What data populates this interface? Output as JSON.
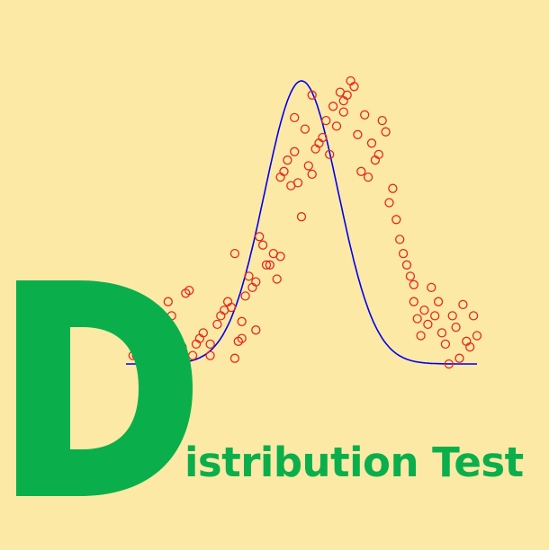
{
  "logo": {
    "initial": "D",
    "rest": "istribution Test",
    "color": "#0aaf4c",
    "background": "#fde9a6"
  },
  "plot": {
    "curve_color": "#0000ee",
    "point_color": "#e8261e",
    "x_range": [
      0,
      1
    ],
    "y_range": [
      0,
      1
    ],
    "curve": {
      "type": "gaussian",
      "mean": 0.5,
      "sd": 0.105,
      "peak": 1.0
    },
    "points": [
      {
        "x": 0.02,
        "y": 0.03
      },
      {
        "x": 0.04,
        "y": 0.02
      },
      {
        "x": 0.03,
        "y": 0.03
      },
      {
        "x": 0.07,
        "y": 0.02
      },
      {
        "x": 0.1,
        "y": 0.16
      },
      {
        "x": 0.12,
        "y": 0.22
      },
      {
        "x": 0.13,
        "y": 0.17
      },
      {
        "x": 0.14,
        "y": 0.04
      },
      {
        "x": 0.16,
        "y": 0.06
      },
      {
        "x": 0.17,
        "y": 0.25
      },
      {
        "x": 0.18,
        "y": 0.26
      },
      {
        "x": 0.19,
        "y": 0.03
      },
      {
        "x": 0.2,
        "y": 0.07
      },
      {
        "x": 0.21,
        "y": 0.09
      },
      {
        "x": 0.22,
        "y": 0.11
      },
      {
        "x": 0.24,
        "y": 0.03
      },
      {
        "x": 0.24,
        "y": 0.07
      },
      {
        "x": 0.26,
        "y": 0.14
      },
      {
        "x": 0.27,
        "y": 0.17
      },
      {
        "x": 0.28,
        "y": 0.19
      },
      {
        "x": 0.29,
        "y": 0.22
      },
      {
        "x": 0.3,
        "y": 0.2
      },
      {
        "x": 0.31,
        "y": 0.39
      },
      {
        "x": 0.31,
        "y": 0.02
      },
      {
        "x": 0.32,
        "y": 0.08
      },
      {
        "x": 0.33,
        "y": 0.09
      },
      {
        "x": 0.33,
        "y": 0.15
      },
      {
        "x": 0.34,
        "y": 0.24
      },
      {
        "x": 0.35,
        "y": 0.31
      },
      {
        "x": 0.36,
        "y": 0.27
      },
      {
        "x": 0.37,
        "y": 0.12
      },
      {
        "x": 0.37,
        "y": 0.29
      },
      {
        "x": 0.38,
        "y": 0.45
      },
      {
        "x": 0.39,
        "y": 0.42
      },
      {
        "x": 0.4,
        "y": 0.35
      },
      {
        "x": 0.41,
        "y": 0.35
      },
      {
        "x": 0.42,
        "y": 0.39
      },
      {
        "x": 0.43,
        "y": 0.3
      },
      {
        "x": 0.44,
        "y": 0.38
      },
      {
        "x": 0.44,
        "y": 0.66
      },
      {
        "x": 0.45,
        "y": 0.68
      },
      {
        "x": 0.46,
        "y": 0.72
      },
      {
        "x": 0.47,
        "y": 0.63
      },
      {
        "x": 0.48,
        "y": 0.75
      },
      {
        "x": 0.48,
        "y": 0.87
      },
      {
        "x": 0.49,
        "y": 0.64
      },
      {
        "x": 0.5,
        "y": 0.52
      },
      {
        "x": 0.51,
        "y": 0.83
      },
      {
        "x": 0.52,
        "y": 0.7
      },
      {
        "x": 0.53,
        "y": 0.95
      },
      {
        "x": 0.53,
        "y": 0.67
      },
      {
        "x": 0.54,
        "y": 0.76
      },
      {
        "x": 0.55,
        "y": 0.78
      },
      {
        "x": 0.56,
        "y": 0.8
      },
      {
        "x": 0.57,
        "y": 0.86
      },
      {
        "x": 0.58,
        "y": 0.74
      },
      {
        "x": 0.59,
        "y": 0.91
      },
      {
        "x": 0.6,
        "y": 0.84
      },
      {
        "x": 0.61,
        "y": 0.96
      },
      {
        "x": 0.62,
        "y": 0.89
      },
      {
        "x": 0.62,
        "y": 0.93
      },
      {
        "x": 0.63,
        "y": 0.95
      },
      {
        "x": 0.64,
        "y": 1.0
      },
      {
        "x": 0.65,
        "y": 0.98
      },
      {
        "x": 0.66,
        "y": 0.81
      },
      {
        "x": 0.67,
        "y": 0.68
      },
      {
        "x": 0.68,
        "y": 0.88
      },
      {
        "x": 0.69,
        "y": 0.66
      },
      {
        "x": 0.7,
        "y": 0.78
      },
      {
        "x": 0.71,
        "y": 0.72
      },
      {
        "x": 0.72,
        "y": 0.74
      },
      {
        "x": 0.73,
        "y": 0.86
      },
      {
        "x": 0.74,
        "y": 0.82
      },
      {
        "x": 0.75,
        "y": 0.57
      },
      {
        "x": 0.76,
        "y": 0.62
      },
      {
        "x": 0.77,
        "y": 0.51
      },
      {
        "x": 0.78,
        "y": 0.44
      },
      {
        "x": 0.79,
        "y": 0.39
      },
      {
        "x": 0.8,
        "y": 0.35
      },
      {
        "x": 0.81,
        "y": 0.31
      },
      {
        "x": 0.82,
        "y": 0.28
      },
      {
        "x": 0.82,
        "y": 0.22
      },
      {
        "x": 0.83,
        "y": 0.16
      },
      {
        "x": 0.84,
        "y": 0.1
      },
      {
        "x": 0.85,
        "y": 0.19
      },
      {
        "x": 0.86,
        "y": 0.14
      },
      {
        "x": 0.87,
        "y": 0.27
      },
      {
        "x": 0.88,
        "y": 0.17
      },
      {
        "x": 0.89,
        "y": 0.22
      },
      {
        "x": 0.9,
        "y": 0.11
      },
      {
        "x": 0.91,
        "y": 0.07
      },
      {
        "x": 0.92,
        "y": 0.0
      },
      {
        "x": 0.93,
        "y": 0.17
      },
      {
        "x": 0.94,
        "y": 0.13
      },
      {
        "x": 0.95,
        "y": 0.02
      },
      {
        "x": 0.96,
        "y": 0.21
      },
      {
        "x": 0.97,
        "y": 0.08
      },
      {
        "x": 0.98,
        "y": 0.06
      },
      {
        "x": 0.99,
        "y": 0.17
      },
      {
        "x": 1.0,
        "y": 0.1
      }
    ]
  }
}
